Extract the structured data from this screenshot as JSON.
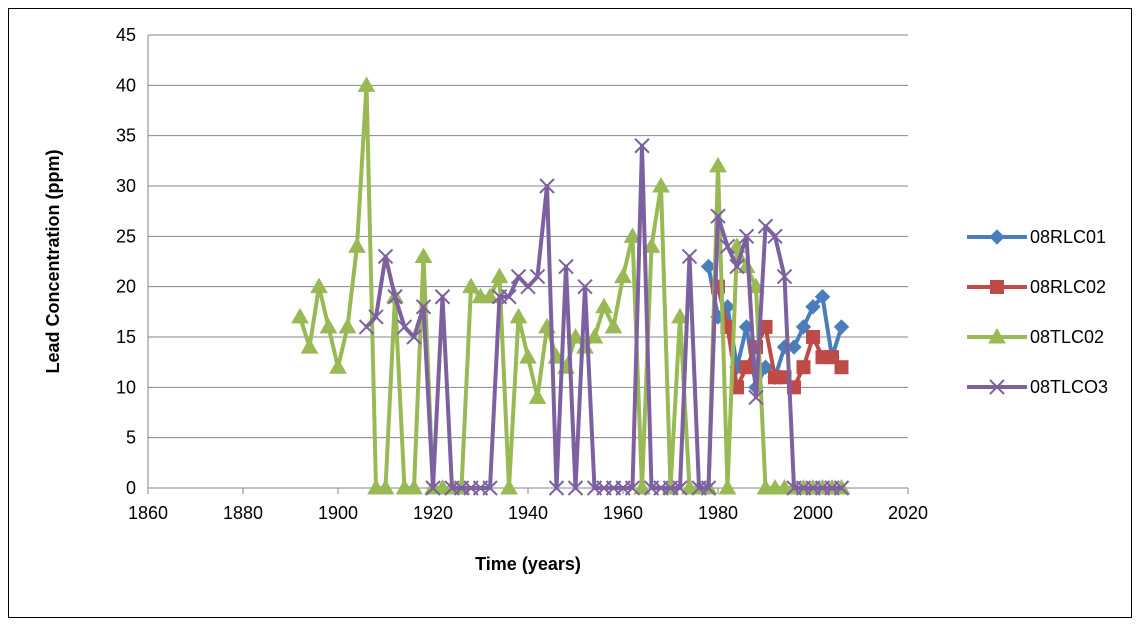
{
  "chart_data": {
    "type": "line",
    "title": "",
    "xlabel": "Time (years)",
    "ylabel": "Lead Concentration (ppm)",
    "xlim": [
      1860,
      2020
    ],
    "ylim": [
      0,
      45
    ],
    "xticks": [
      1860,
      1880,
      1900,
      1920,
      1940,
      1960,
      1980,
      2000,
      2020
    ],
    "yticks": [
      0,
      5,
      10,
      15,
      20,
      25,
      30,
      35,
      40,
      45
    ],
    "grid": "horizontal",
    "legend": "right",
    "series": [
      {
        "name": "08RLC01",
        "color": "#4a7ebb",
        "marker": "diamond",
        "x": [
          1978,
          1980,
          1982,
          1984,
          1986,
          1988,
          1990,
          1992,
          1994,
          1996,
          1998,
          2000,
          2002,
          2004,
          2006
        ],
        "y": [
          22,
          17,
          18,
          12,
          16,
          10,
          12,
          11,
          14,
          14,
          16,
          18,
          19,
          13,
          16
        ]
      },
      {
        "name": "08RLC02",
        "color": "#be4b48",
        "marker": "square",
        "x": [
          1980,
          1982,
          1984,
          1986,
          1988,
          1990,
          1992,
          1994,
          1996,
          1998,
          2000,
          2002,
          2004,
          2006
        ],
        "y": [
          20,
          16,
          10,
          12,
          14,
          16,
          11,
          11,
          10,
          12,
          15,
          13,
          13,
          12
        ]
      },
      {
        "name": "08TLC02",
        "color": "#98b954",
        "marker": "triangle",
        "x": [
          1892,
          1894,
          1896,
          1898,
          1900,
          1902,
          1904,
          1906,
          1908,
          1910,
          1912,
          1914,
          1916,
          1918,
          1920,
          1922,
          1924,
          1926,
          1928,
          1930,
          1932,
          1934,
          1936,
          1938,
          1940,
          1942,
          1944,
          1946,
          1948,
          1950,
          1952,
          1954,
          1956,
          1958,
          1960,
          1962,
          1964,
          1966,
          1968,
          1970,
          1972,
          1974,
          1976,
          1978,
          1980,
          1982,
          1984,
          1986,
          1988,
          1990,
          1992,
          1994,
          1996,
          1998,
          2000,
          2002,
          2004,
          2006
        ],
        "y": [
          17,
          14,
          20,
          16,
          12,
          16,
          24,
          40,
          0,
          0,
          19,
          0,
          0,
          23,
          0,
          0,
          0,
          0,
          20,
          19,
          19,
          21,
          0,
          17,
          13,
          9,
          16,
          13,
          12,
          15,
          14,
          15,
          18,
          16,
          21,
          25,
          0,
          24,
          30,
          0,
          17,
          0,
          0,
          0,
          32,
          0,
          24,
          22,
          20,
          0,
          0,
          0,
          0,
          0,
          0,
          0,
          0,
          0
        ]
      },
      {
        "name": "08TLCO3",
        "color": "#7d60a0",
        "marker": "x",
        "x": [
          1906,
          1908,
          1910,
          1912,
          1914,
          1916,
          1918,
          1920,
          1922,
          1924,
          1926,
          1928,
          1930,
          1932,
          1934,
          1936,
          1938,
          1940,
          1942,
          1944,
          1946,
          1948,
          1950,
          1952,
          1954,
          1956,
          1958,
          1960,
          1962,
          1964,
          1966,
          1968,
          1970,
          1972,
          1974,
          1976,
          1978,
          1980,
          1982,
          1984,
          1986,
          1988,
          1990,
          1992,
          1994,
          1996,
          1998,
          2000,
          2002,
          2004,
          2006
        ],
        "y": [
          16,
          17,
          23,
          19,
          16,
          15,
          18,
          0,
          19,
          0,
          0,
          0,
          0,
          0,
          19,
          19,
          21,
          20,
          21,
          30,
          0,
          22,
          0,
          20,
          0,
          0,
          0,
          0,
          0,
          34,
          0,
          0,
          0,
          0,
          23,
          0,
          0,
          27,
          24,
          22,
          25,
          9,
          26,
          25,
          21,
          0,
          0,
          0,
          0,
          0,
          0
        ]
      }
    ]
  }
}
